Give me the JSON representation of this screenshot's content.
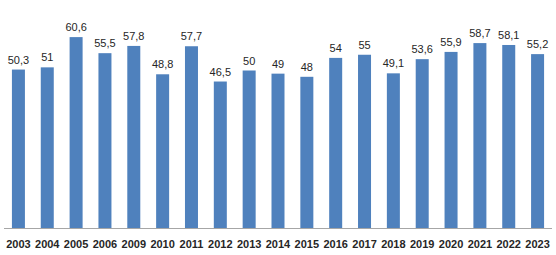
{
  "chart_data": {
    "type": "bar",
    "categories": [
      "2003",
      "2004",
      "2005",
      "2006",
      "2009",
      "2010",
      "2011",
      "2012",
      "2013",
      "2014",
      "2015",
      "2016",
      "2017",
      "2018",
      "2019",
      "2020",
      "2021",
      "2022",
      "2023"
    ],
    "values": [
      50.3,
      51,
      60.6,
      55.5,
      57.8,
      48.8,
      57.7,
      46.5,
      50,
      49,
      48,
      54,
      55,
      49.1,
      53.6,
      55.9,
      58.7,
      58.1,
      55.2
    ],
    "value_labels": [
      "50,3",
      "51",
      "60,6",
      "55,5",
      "57,8",
      "48,8",
      "57,7",
      "46,5",
      "50",
      "49",
      "48",
      "54",
      "55",
      "49,1",
      "53,6",
      "55,9",
      "58,7",
      "58,1",
      "55,2"
    ],
    "color": "#4f81bd",
    "ylim": [
      0,
      70
    ],
    "grid": false,
    "data_labels": true,
    "tick_labels": "x"
  }
}
